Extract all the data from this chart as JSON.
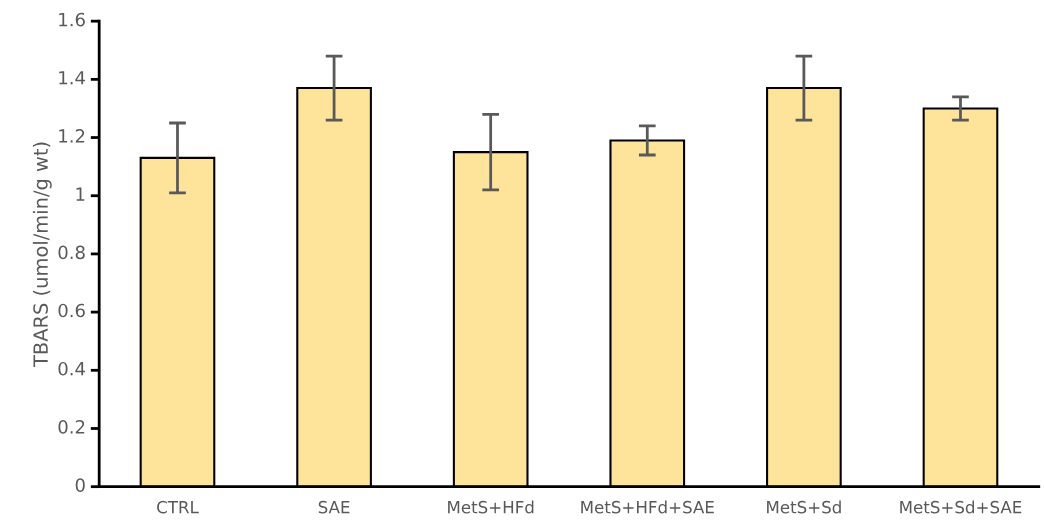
{
  "chart_data": {
    "type": "bar",
    "ylabel": "TBARS (umol/min/g wt)",
    "categories": [
      "CTRL",
      "SAE",
      "MetS+HFd",
      "MetS+HFd+SAE",
      "MetS+Sd",
      "MetS+Sd+SAE"
    ],
    "values": [
      1.13,
      1.37,
      1.15,
      1.19,
      1.37,
      1.3
    ],
    "errors": [
      0.12,
      0.11,
      0.13,
      0.05,
      0.11,
      0.04
    ],
    "color": "#fde49a",
    "ylim": [
      0,
      1.6
    ],
    "yticks": [
      0,
      0.2,
      0.4,
      0.6,
      0.8,
      1,
      1.2,
      1.4,
      1.6
    ],
    "grid": false,
    "legend": false
  }
}
